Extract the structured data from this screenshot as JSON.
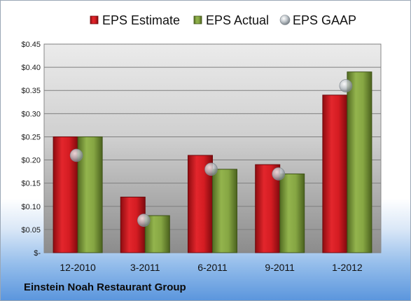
{
  "footer_label": "Einstein Noah Restaurant Group",
  "chart_data": {
    "type": "bar",
    "categories": [
      "12-2010",
      "3-2011",
      "6-2011",
      "9-2011",
      "1-2012"
    ],
    "series": [
      {
        "name": "EPS Estimate",
        "kind": "bar",
        "color": "#c8161d",
        "values": [
          0.25,
          0.12,
          0.21,
          0.19,
          0.34
        ]
      },
      {
        "name": "EPS Actual",
        "kind": "bar",
        "color": "#7a9a3a",
        "values": [
          0.25,
          0.08,
          0.18,
          0.17,
          0.39
        ]
      },
      {
        "name": "EPS GAAP",
        "kind": "marker",
        "color": "#a9b0b6",
        "values": [
          0.21,
          0.07,
          0.18,
          0.17,
          0.36
        ]
      }
    ],
    "ylim": [
      0,
      0.45
    ],
    "yticks": [
      0,
      0.05,
      0.1,
      0.15,
      0.2,
      0.25,
      0.3,
      0.35,
      0.4,
      0.45
    ],
    "ytick_labels": [
      "$-",
      "$0.05",
      "$0.10",
      "$0.15",
      "$0.20",
      "$0.25",
      "$0.30",
      "$0.35",
      "$0.40",
      "$0.45"
    ],
    "grid": true,
    "legend": "top"
  }
}
